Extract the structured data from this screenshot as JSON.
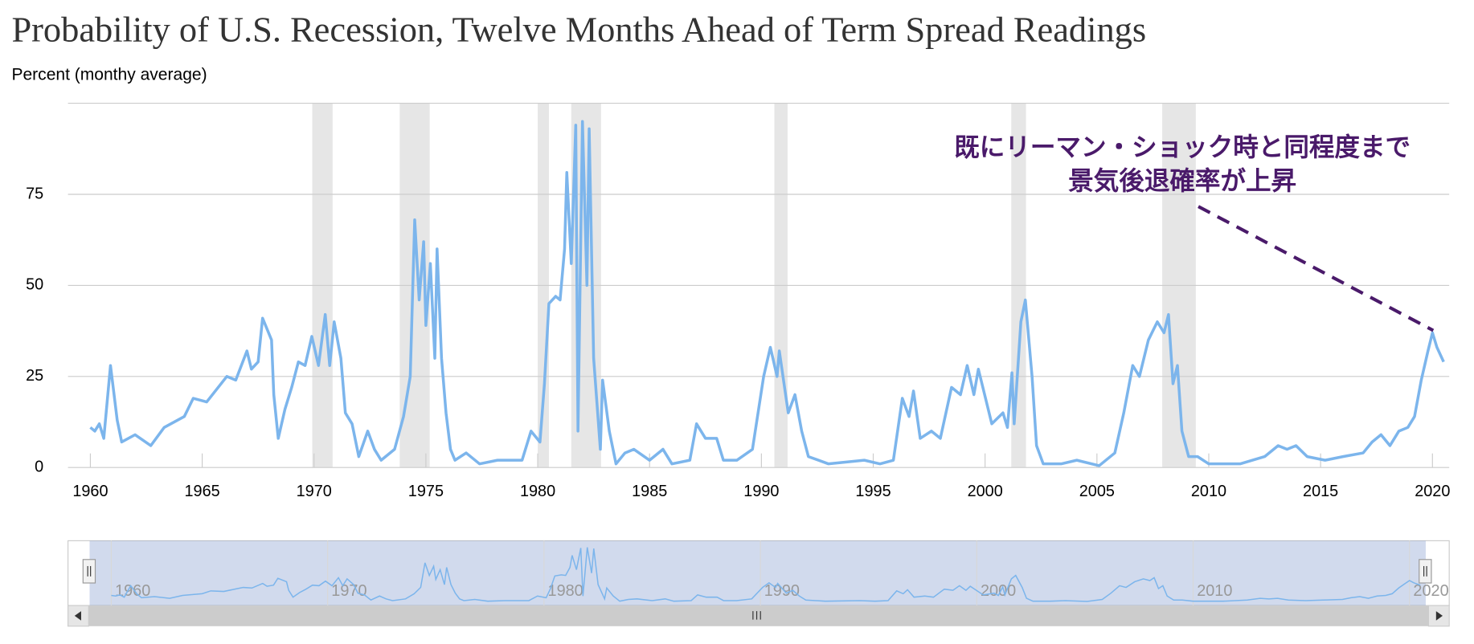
{
  "chart_data": {
    "type": "line",
    "title": "Probability of U.S. Recession, Twelve Months Ahead of Term Spread Readings",
    "y_axis_label": "Percent (monthy average)",
    "color": "#7cb5ec",
    "xlim": [
      1959,
      2020.75
    ],
    "ylim": [
      0,
      100
    ],
    "xticks": [
      1960,
      1965,
      1970,
      1975,
      1980,
      1985,
      1990,
      1995,
      2000,
      2005,
      2010,
      2015,
      2020
    ],
    "yticks": [
      0,
      25,
      50,
      75
    ],
    "grid": true,
    "recessions": [
      [
        1969.92,
        1970.83
      ],
      [
        1973.83,
        1975.17
      ],
      [
        1980.0,
        1980.5
      ],
      [
        1981.5,
        1982.83
      ],
      [
        1990.58,
        1991.17
      ],
      [
        2001.17,
        2001.83
      ],
      [
        2007.92,
        2009.42
      ]
    ],
    "navigator_xticks": [
      1960,
      1970,
      1980,
      1990,
      2000,
      2010,
      2020
    ],
    "annotation": [
      "既にリーマン・ショック時と同程度まで",
      "景気後退確率が上昇"
    ],
    "x": [
      1960.0,
      1960.2,
      1960.4,
      1960.6,
      1960.9,
      1961.2,
      1961.4,
      1962.0,
      1962.7,
      1963.3,
      1964.2,
      1964.6,
      1965.2,
      1966.1,
      1966.5,
      1967.0,
      1967.2,
      1967.5,
      1967.7,
      1968.1,
      1968.2,
      1968.4,
      1968.7,
      1969.0,
      1969.3,
      1969.6,
      1969.9,
      1970.2,
      1970.5,
      1970.7,
      1970.9,
      1971.2,
      1971.4,
      1971.7,
      1972.0,
      1972.4,
      1972.7,
      1973.0,
      1973.6,
      1974.0,
      1974.3,
      1974.5,
      1974.7,
      1974.9,
      1975.0,
      1975.2,
      1975.4,
      1975.5,
      1975.7,
      1975.9,
      1976.1,
      1976.3,
      1976.8,
      1977.4,
      1978.2,
      1979.3,
      1979.7,
      1980.1,
      1980.3,
      1980.5,
      1980.8,
      1981.0,
      1981.2,
      1981.3,
      1981.5,
      1981.7,
      1981.8,
      1982.0,
      1982.2,
      1982.3,
      1982.5,
      1982.8,
      1982.9,
      1983.2,
      1983.5,
      1983.9,
      1984.3,
      1985.0,
      1985.6,
      1986.0,
      1986.8,
      1987.1,
      1987.5,
      1988.0,
      1988.3,
      1988.9,
      1989.6,
      1990.1,
      1990.4,
      1990.7,
      1990.8,
      1991.2,
      1991.5,
      1991.8,
      1992.1,
      1993.0,
      1994.6,
      1995.3,
      1995.9,
      1996.3,
      1996.6,
      1996.8,
      1997.1,
      1997.6,
      1998.0,
      1998.5,
      1998.9,
      1999.2,
      1999.5,
      1999.7,
      2000.3,
      2000.8,
      2001.0,
      2001.2,
      2001.3,
      2001.6,
      2001.8,
      2002.1,
      2002.3,
      2002.6,
      2003.4,
      2004.1,
      2005.1,
      2005.8,
      2006.2,
      2006.6,
      2006.9,
      2007.3,
      2007.7,
      2008.0,
      2008.2,
      2008.4,
      2008.6,
      2008.8,
      2009.1,
      2009.5,
      2010.0,
      2011.4,
      2012.5,
      2013.1,
      2013.5,
      2013.9,
      2014.4,
      2015.2,
      2016.0,
      2016.9,
      2017.3,
      2017.7,
      2018.1,
      2018.5,
      2018.9,
      2019.2,
      2019.5,
      2019.8,
      2020.0,
      2020.2,
      2020.5
    ],
    "values": [
      11,
      10,
      12,
      8,
      28,
      13,
      7,
      9,
      6,
      11,
      14,
      19,
      18,
      25,
      24,
      32,
      27,
      29,
      41,
      35,
      20,
      8,
      16,
      22,
      29,
      28,
      36,
      28,
      42,
      28,
      40,
      30,
      15,
      12,
      3,
      10,
      5,
      2,
      5,
      14,
      25,
      68,
      46,
      62,
      39,
      56,
      30,
      60,
      30,
      15,
      5,
      2,
      4,
      1,
      2,
      2,
      10,
      7,
      23,
      45,
      47,
      46,
      60,
      81,
      56,
      94,
      10,
      95,
      50,
      93,
      30,
      5,
      24,
      10,
      1,
      4,
      5,
      2,
      5,
      1,
      2,
      12,
      8,
      8,
      2,
      2,
      5,
      25,
      33,
      25,
      32,
      15,
      20,
      10,
      3,
      1,
      2,
      1,
      2,
      19,
      14,
      21,
      8,
      10,
      8,
      22,
      20,
      28,
      20,
      27,
      12,
      15,
      11,
      26,
      12,
      40,
      46,
      25,
      6,
      1,
      1,
      2,
      0.5,
      4,
      15,
      28,
      25,
      35,
      40,
      37,
      42,
      23,
      28,
      10,
      3,
      3,
      1,
      1,
      3,
      6,
      5,
      6,
      3,
      2,
      3,
      4,
      7,
      9,
      6,
      10,
      11,
      14,
      24,
      32,
      37,
      33,
      29
    ]
  }
}
